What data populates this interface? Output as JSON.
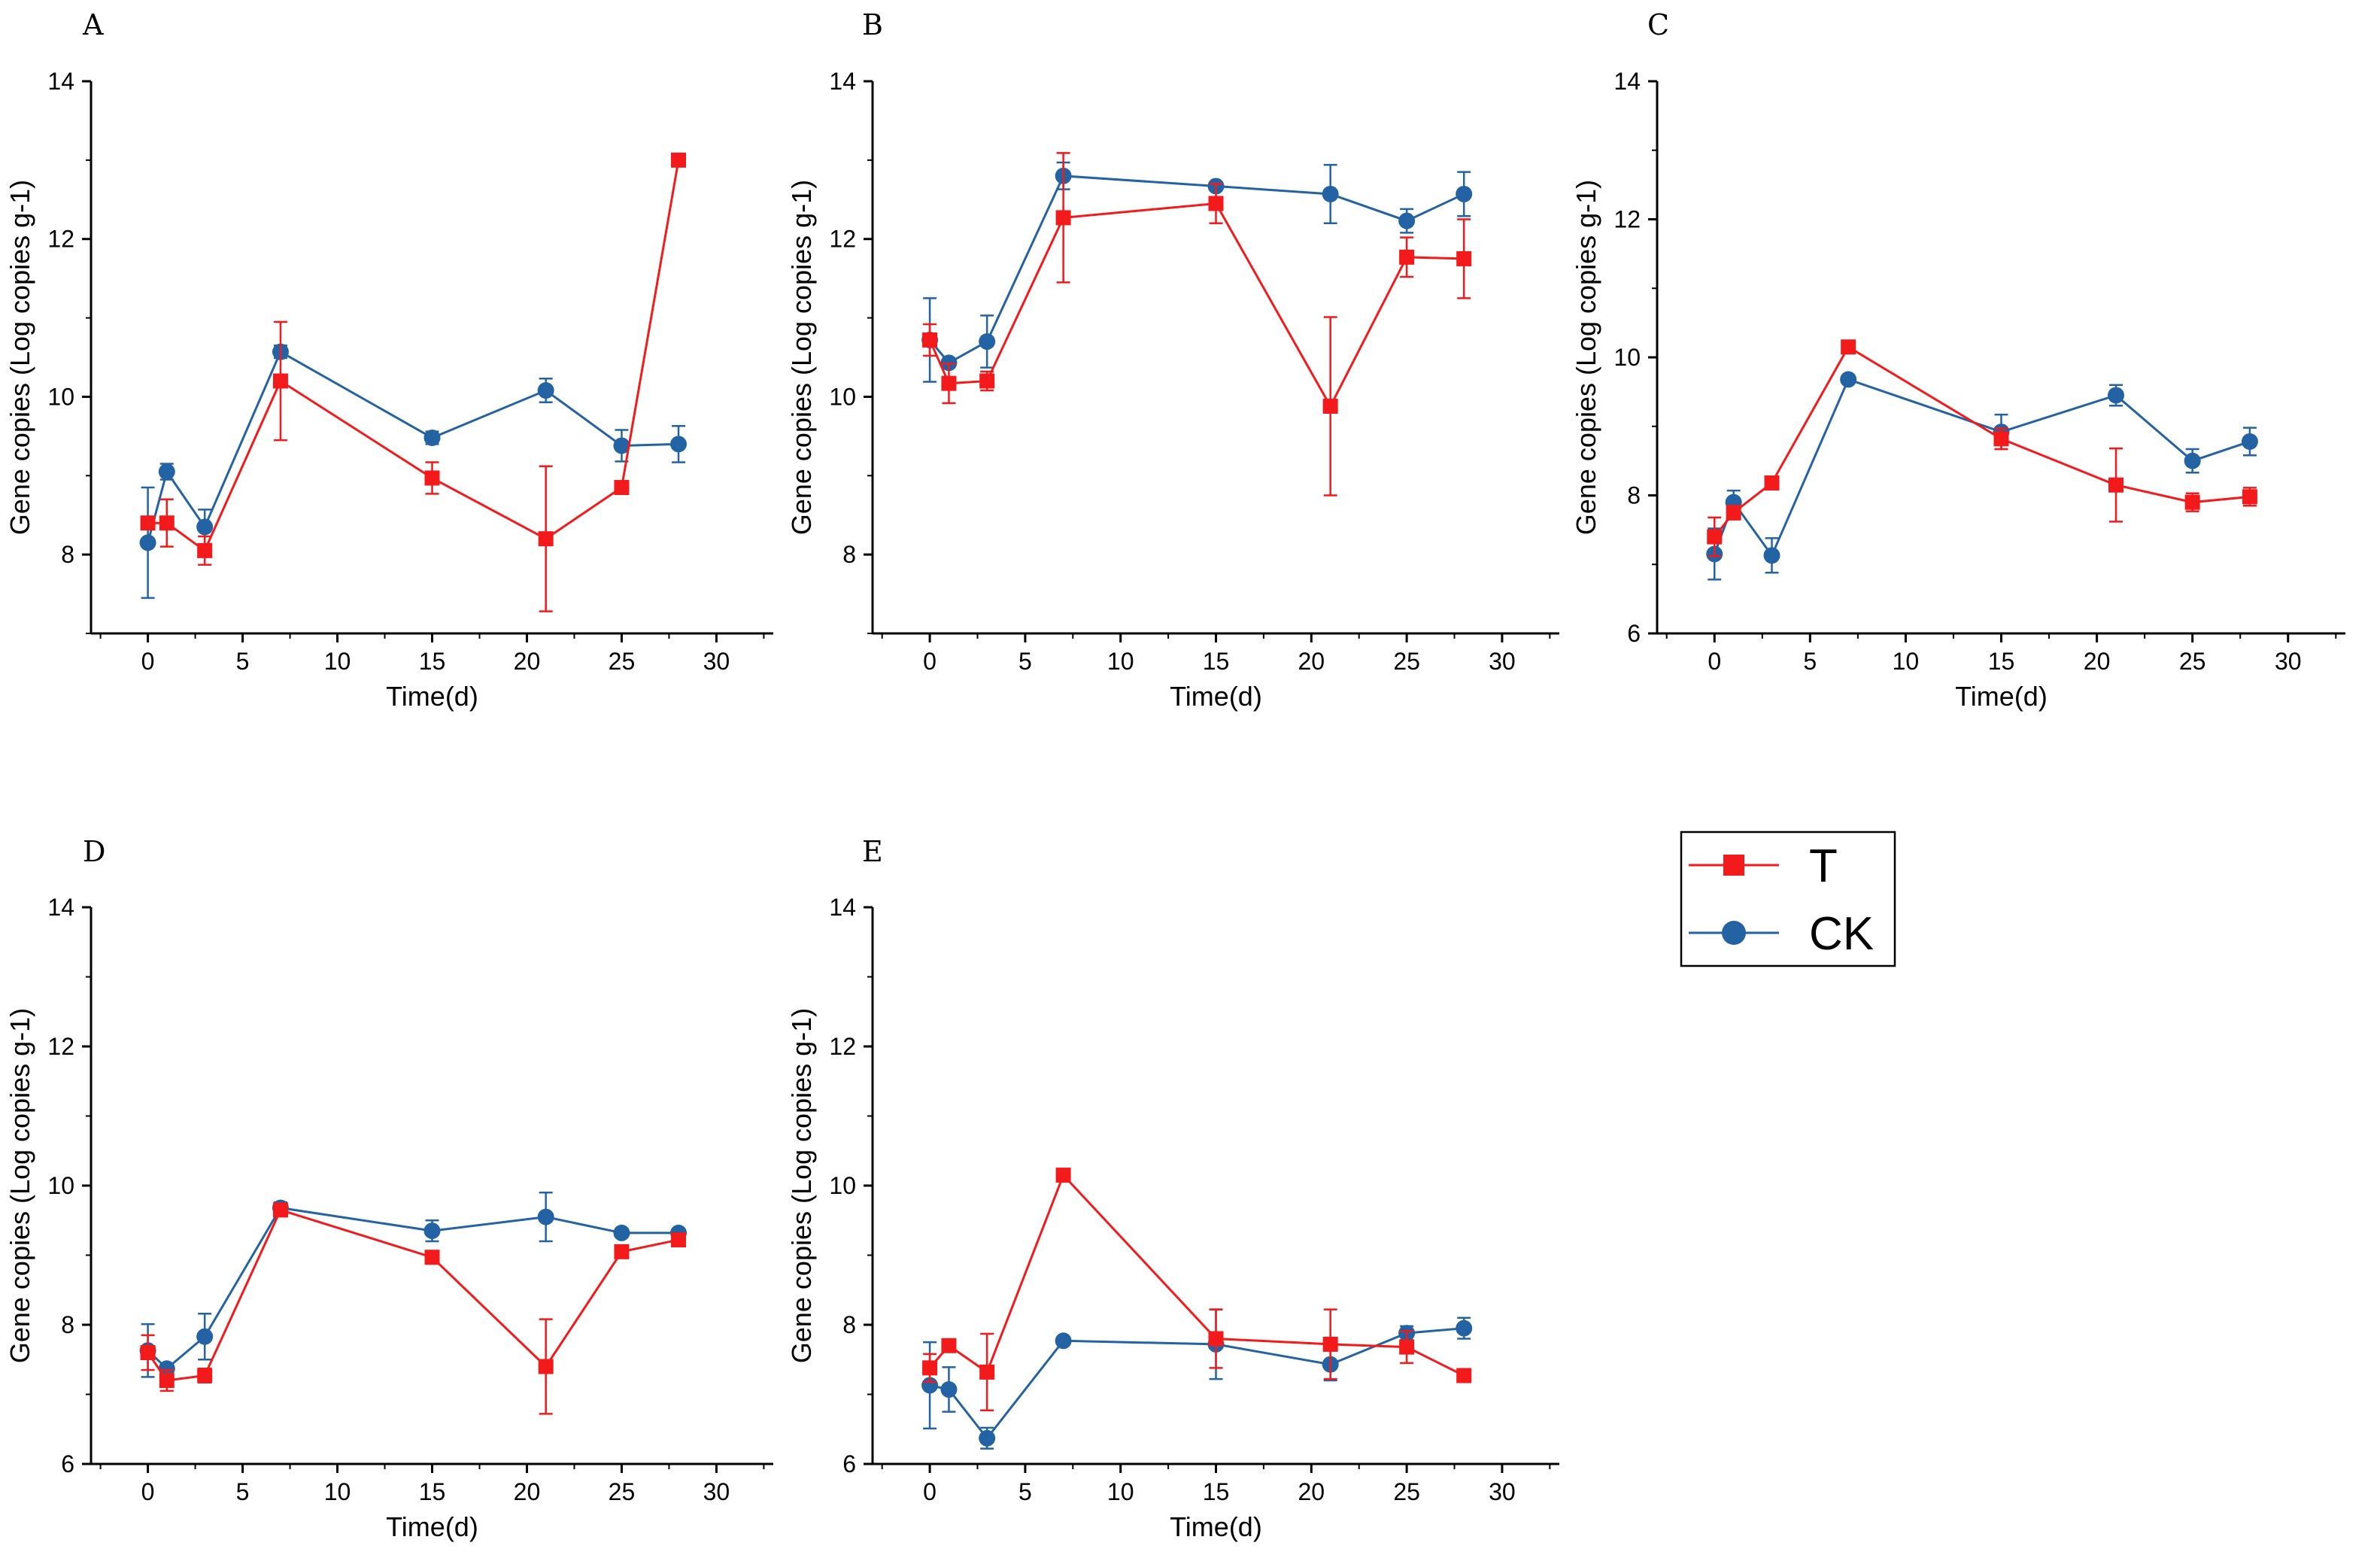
{
  "colors": {
    "T": "#f21a1a",
    "CK": "#2463a3",
    "axis": "#000000"
  },
  "legend": {
    "entries": [
      {
        "key": "T",
        "label": "T"
      },
      {
        "key": "CK",
        "label": "CK"
      }
    ]
  },
  "chart_data": [
    {
      "panel": "A",
      "type": "line",
      "xlabel": "Time(d)",
      "ylabel": "Gene copies (Log copies g-1)",
      "xlim": [
        -3,
        33
      ],
      "ylim": [
        7,
        14
      ],
      "xticks": [
        0,
        5,
        10,
        15,
        20,
        25,
        30
      ],
      "yticks": [
        8,
        10,
        12,
        14
      ],
      "x": [
        0,
        1,
        3,
        7,
        15,
        21,
        25,
        28
      ],
      "series": [
        {
          "name": "T",
          "values": [
            8.4,
            8.4,
            8.05,
            10.2,
            8.97,
            8.2,
            8.85,
            13.0
          ],
          "errors": [
            0.05,
            0.3,
            0.18,
            0.75,
            0.2,
            0.92,
            0.08,
            0.05
          ]
        },
        {
          "name": "CK",
          "values": [
            8.15,
            9.05,
            8.35,
            10.57,
            9.48,
            10.08,
            9.38,
            9.4
          ],
          "errors": [
            0.7,
            0.1,
            0.22,
            0.08,
            0.08,
            0.15,
            0.2,
            0.23
          ]
        }
      ]
    },
    {
      "panel": "B",
      "type": "line",
      "xlabel": "Time(d)",
      "ylabel": "Gene copies (Log copies g-1)",
      "xlim": [
        -3,
        33
      ],
      "ylim": [
        7,
        14
      ],
      "xticks": [
        0,
        5,
        10,
        15,
        20,
        25,
        30
      ],
      "yticks": [
        8,
        10,
        12,
        14
      ],
      "x": [
        0,
        1,
        3,
        7,
        15,
        21,
        25,
        28
      ],
      "series": [
        {
          "name": "T",
          "values": [
            10.72,
            10.17,
            10.2,
            12.27,
            12.45,
            9.88,
            11.77,
            11.75
          ],
          "errors": [
            0.2,
            0.25,
            0.12,
            0.82,
            0.25,
            1.13,
            0.25,
            0.5
          ]
        },
        {
          "name": "CK",
          "values": [
            10.72,
            10.43,
            10.7,
            12.8,
            12.67,
            12.57,
            12.23,
            12.57
          ],
          "errors": [
            0.53,
            0.05,
            0.33,
            0.17,
            0.05,
            0.37,
            0.15,
            0.28
          ]
        }
      ]
    },
    {
      "panel": "C",
      "type": "line",
      "xlabel": "Time(d)",
      "ylabel": "Gene copies (Log copies g-1)",
      "xlim": [
        -3,
        33
      ],
      "ylim": [
        6,
        14
      ],
      "xticks": [
        0,
        5,
        10,
        15,
        20,
        25,
        30
      ],
      "yticks": [
        6,
        8,
        10,
        12,
        14
      ],
      "x": [
        0,
        1,
        3,
        7,
        15,
        21,
        25,
        28
      ],
      "series": [
        {
          "name": "T",
          "values": [
            7.4,
            7.75,
            8.18,
            10.15,
            8.82,
            8.15,
            7.9,
            7.98
          ],
          "errors": [
            0.28,
            0.1,
            0.06,
            0.06,
            0.15,
            0.53,
            0.13,
            0.13
          ]
        },
        {
          "name": "CK",
          "values": [
            7.15,
            7.9,
            7.13,
            9.68,
            8.92,
            9.45,
            8.5,
            8.78
          ],
          "errors": [
            0.37,
            0.17,
            0.25,
            0.05,
            0.25,
            0.15,
            0.17,
            0.2
          ]
        }
      ]
    },
    {
      "panel": "D",
      "type": "line",
      "xlabel": "Time(d)",
      "ylabel": "Gene copies (Log copies g-1)",
      "xlim": [
        -3,
        33
      ],
      "ylim": [
        6,
        14
      ],
      "xticks": [
        0,
        5,
        10,
        15,
        20,
        25,
        30
      ],
      "yticks": [
        6,
        8,
        10,
        12,
        14
      ],
      "x": [
        0,
        1,
        3,
        7,
        15,
        21,
        25,
        28
      ],
      "series": [
        {
          "name": "T",
          "values": [
            7.6,
            7.2,
            7.27,
            9.65,
            8.97,
            7.4,
            9.05,
            9.22
          ],
          "errors": [
            0.25,
            0.15,
            0.1,
            0.08,
            0.07,
            0.68,
            0.06,
            0.07
          ]
        },
        {
          "name": "CK",
          "values": [
            7.63,
            7.37,
            7.83,
            9.68,
            9.35,
            9.55,
            9.32,
            9.32
          ],
          "errors": [
            0.38,
            0.07,
            0.33,
            0.08,
            0.15,
            0.35,
            0.06,
            0.06
          ]
        }
      ]
    },
    {
      "panel": "E",
      "type": "line",
      "xlabel": "Time(d)",
      "ylabel": "Gene copies (Log copies g-1)",
      "xlim": [
        -3,
        33
      ],
      "ylim": [
        6,
        14
      ],
      "xticks": [
        0,
        5,
        10,
        15,
        20,
        25,
        30
      ],
      "yticks": [
        6,
        8,
        10,
        12,
        14
      ],
      "x": [
        0,
        1,
        3,
        7,
        15,
        21,
        25,
        28
      ],
      "series": [
        {
          "name": "T",
          "values": [
            7.38,
            7.7,
            7.32,
            10.15,
            7.8,
            7.72,
            7.68,
            7.27
          ],
          "errors": [
            0.2,
            0.07,
            0.55,
            0.07,
            0.42,
            0.5,
            0.23,
            0.06
          ]
        },
        {
          "name": "CK",
          "values": [
            7.13,
            7.07,
            6.37,
            7.77,
            7.72,
            7.43,
            7.88,
            7.95
          ],
          "errors": [
            0.62,
            0.32,
            0.15,
            0.05,
            0.5,
            0.23,
            0.1,
            0.15
          ]
        }
      ]
    }
  ]
}
